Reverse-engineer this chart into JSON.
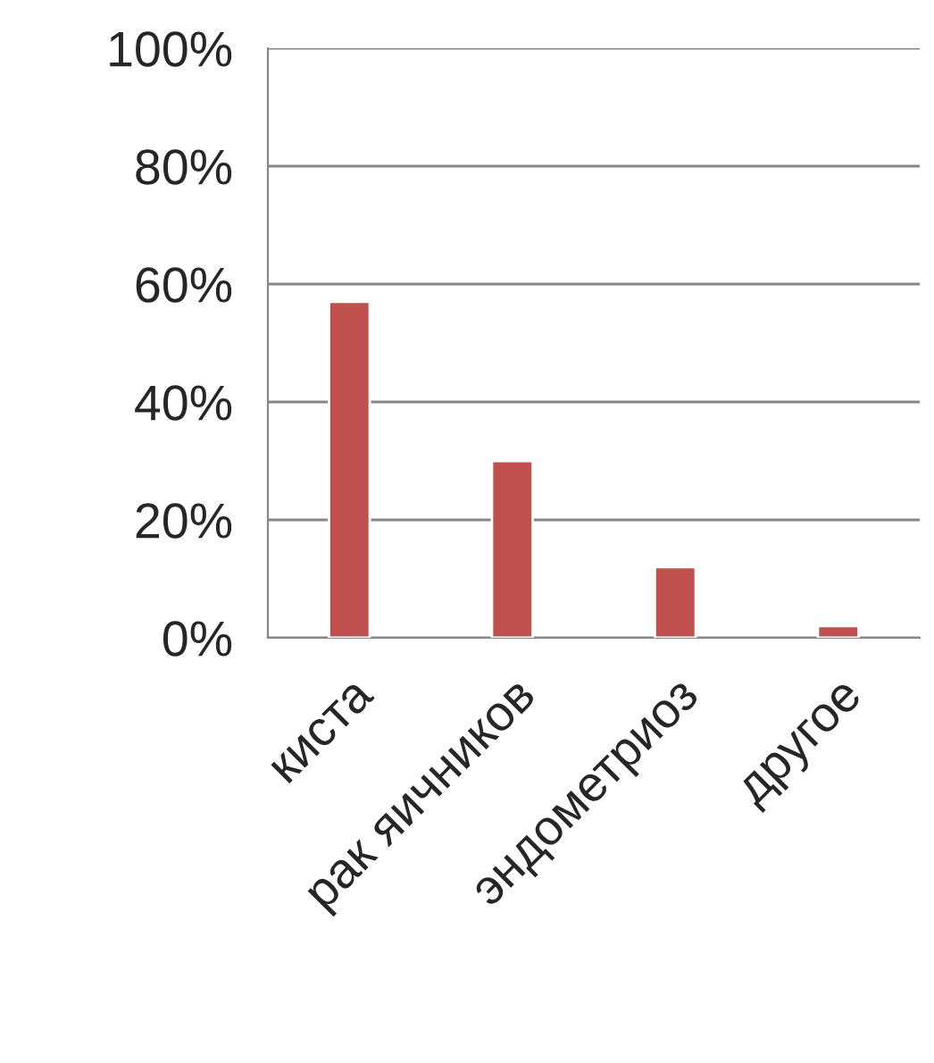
{
  "chart_data": {
    "type": "bar",
    "categories": [
      "киста",
      "рак яичников",
      "эндометриоз",
      "другое"
    ],
    "values": [
      57,
      30,
      12,
      2
    ],
    "color": "#c0504d",
    "ylim": [
      0,
      100
    ],
    "yticks": [
      {
        "value": 0,
        "label": "0%"
      },
      {
        "value": 20,
        "label": "20%"
      },
      {
        "value": 40,
        "label": "40%"
      },
      {
        "value": 60,
        "label": "60%"
      },
      {
        "value": 80,
        "label": "80%"
      },
      {
        "value": 100,
        "label": "100%"
      }
    ],
    "grid": "y",
    "legend": false
  }
}
